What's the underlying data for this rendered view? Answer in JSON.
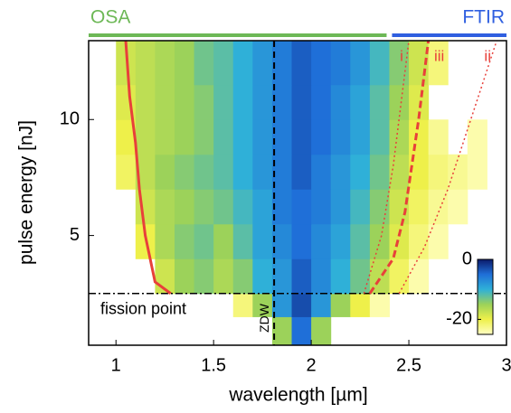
{
  "chart_data": {
    "type": "heatmap",
    "xlabel": "wavelength [µm]",
    "ylabel": "pulse energy [nJ]",
    "xlim": [
      0.86,
      3.0
    ],
    "ylim": [
      0.27,
      13.4
    ],
    "xticks": [
      1,
      1.5,
      2,
      2.5,
      3
    ],
    "yticks": [
      5,
      10
    ],
    "x_edges": [
      0.9,
      1.0,
      1.1,
      1.2,
      1.3,
      1.4,
      1.5,
      1.6,
      1.7,
      1.8,
      1.9,
      2.0,
      2.1,
      2.2,
      2.3,
      2.4,
      2.5,
      2.6,
      2.7,
      2.8,
      2.9
    ],
    "y_edges": [
      0.3,
      1.5,
      2.5,
      4,
      5.5,
      7,
      8.5,
      10,
      11.5,
      13.4
    ],
    "z": [
      [
        null,
        null,
        null,
        null,
        null,
        null,
        null,
        null,
        null,
        -15,
        -5,
        -15,
        null,
        null,
        null,
        null,
        null,
        null,
        null,
        null
      ],
      [
        null,
        null,
        null,
        null,
        null,
        null,
        null,
        -22,
        -15,
        -8,
        -3,
        -8,
        -15,
        -20,
        -24,
        null,
        null,
        null,
        null,
        null
      ],
      [
        null,
        null,
        null,
        -18,
        -15,
        -14,
        -16,
        -14,
        -10,
        -8,
        -4,
        -7,
        -10,
        -13,
        -17,
        -21,
        -24,
        null,
        null,
        null
      ],
      [
        null,
        null,
        -20,
        -16,
        -14,
        -13,
        -15,
        -12,
        -9,
        -7,
        -5,
        -7,
        -9,
        -12,
        -15,
        -19,
        -22,
        -24,
        null,
        null
      ],
      [
        null,
        null,
        -18,
        -16,
        -15,
        -14,
        -13,
        -11,
        -9,
        -6,
        -5,
        -6,
        -8,
        -11,
        -14,
        -18,
        -21,
        -23,
        -24,
        null
      ],
      [
        null,
        -21,
        -17,
        -15,
        -14,
        -13,
        -12,
        -10,
        -8,
        -6,
        -4,
        -6,
        -8,
        -10,
        -13,
        -17,
        -20,
        -22,
        -23,
        -24
      ],
      [
        null,
        -20,
        -17,
        -16,
        -15,
        -14,
        -12,
        -10,
        -8,
        -6,
        -4,
        -5,
        -7,
        -9,
        -12,
        -16,
        -20,
        -23,
        null,
        -24
      ],
      [
        null,
        -19,
        -17,
        -16,
        -15,
        -14,
        -12,
        -10,
        -8,
        -6,
        -4,
        -5,
        -7,
        -9,
        -12,
        -15,
        -19,
        null,
        null,
        null
      ],
      [
        null,
        -18,
        -17,
        -16,
        -15,
        -13,
        -12,
        -10,
        -8,
        -6,
        -4,
        -5,
        -6,
        -8,
        -11,
        -14,
        -18,
        -22,
        null,
        null
      ]
    ],
    "clim": [
      -25,
      0
    ],
    "cticks": [
      0,
      -20
    ],
    "colormap": [
      "#ffffc4",
      "#eef04a",
      "#9cd25a",
      "#2fb0d8",
      "#1f6fd8",
      "#0b1a6a"
    ],
    "lines": [
      {
        "color": "#e8403a",
        "style": "solid",
        "x": [
          1.28,
          1.2,
          1.15,
          1.12,
          1.1,
          1.07,
          1.05
        ],
        "y": [
          2.5,
          3,
          5,
          7,
          9,
          11,
          13.4
        ]
      },
      {
        "label": "iii",
        "color": "#e8403a",
        "style": "dashed",
        "x": [
          2.3,
          2.42,
          2.48,
          2.55,
          2.6
        ],
        "y": [
          2.5,
          4,
          6,
          10,
          13.4
        ]
      },
      {
        "label": "i",
        "color": "#e8403a",
        "style": "dotted",
        "x": [
          2.27,
          2.36,
          2.42,
          2.5
        ],
        "y": [
          2.5,
          5,
          8,
          13.4
        ]
      },
      {
        "label": "ii",
        "color": "#e8403a",
        "style": "dotted",
        "x": [
          2.45,
          2.58,
          2.7,
          2.95
        ],
        "y": [
          2.5,
          4.5,
          7,
          13.4
        ]
      }
    ],
    "zdw": {
      "label": "ZDW",
      "x": 1.81
    },
    "fission": {
      "label": "fission point",
      "y": 2.5
    },
    "bands": [
      {
        "label": "OSA",
        "color": "#6db856",
        "range": [
          0.86,
          2.4
        ]
      },
      {
        "label": "FTIR",
        "color": "#2f5fe0",
        "range": [
          2.4,
          3.0
        ]
      }
    ]
  }
}
